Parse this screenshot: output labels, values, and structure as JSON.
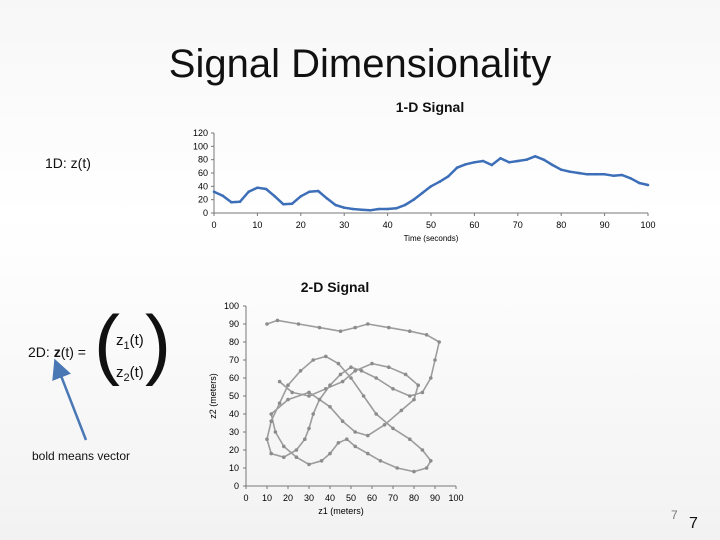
{
  "slide": {
    "title": "Signal Dimensionality",
    "label_1d": "1D: z(t)",
    "label_2d": "2D: ",
    "label_2d_bold": "z",
    "label_2d_rest": "(t) =",
    "vector_row1_main": "z",
    "vector_row1_sub": "1",
    "vector_row1_end": "(t)",
    "vector_row2_main": "z",
    "vector_row2_sub": "2",
    "vector_row2_end": "(t)",
    "bold_note": "bold means vector",
    "page_number_small": "7",
    "page_number": "7",
    "colors": {
      "arrow": "#4a78b5",
      "signal_1d": "#3d6fb8",
      "trace_2d": "#8c8c8c"
    }
  },
  "chart_data": [
    {
      "type": "line",
      "title": "1-D Signal",
      "xlabel": "Time (seconds)",
      "ylabel": "",
      "xlim": [
        0,
        100
      ],
      "ylim": [
        0,
        120
      ],
      "x_ticks": [
        "0",
        "10",
        "20",
        "30",
        "40",
        "50",
        "60",
        "70",
        "80",
        "90",
        "100"
      ],
      "y_ticks": [
        "0",
        "20",
        "40",
        "60",
        "80",
        "100",
        "120"
      ],
      "series": [
        {
          "x": [
            0,
            2,
            4,
            6,
            8,
            10,
            12,
            14,
            16,
            18,
            20,
            22,
            24,
            26,
            28,
            30,
            32,
            34,
            36,
            38,
            40,
            42,
            44,
            46,
            48,
            50,
            52,
            54,
            56,
            58,
            60,
            62,
            64,
            66,
            68,
            70,
            72,
            74,
            76,
            78,
            80,
            82,
            84,
            86,
            88,
            90,
            92,
            94,
            96,
            98,
            100
          ],
          "y": [
            32,
            26,
            16,
            17,
            32,
            38,
            36,
            25,
            13,
            14,
            25,
            32,
            33,
            22,
            12,
            8,
            6,
            5,
            4,
            6,
            6,
            7,
            12,
            20,
            30,
            40,
            47,
            55,
            68,
            73,
            76,
            78,
            72,
            82,
            76,
            78,
            80,
            85,
            80,
            72,
            65,
            62,
            60,
            58,
            58,
            58,
            56,
            57,
            52,
            45,
            42
          ]
        }
      ]
    },
    {
      "type": "scatter",
      "title": "2-D Signal",
      "xlabel": "z1 (meters)",
      "ylabel": "z2 (meters)",
      "xlim": [
        0,
        100
      ],
      "ylim": [
        0,
        100
      ],
      "x_ticks": [
        "0",
        "10",
        "20",
        "30",
        "40",
        "50",
        "60",
        "70",
        "80",
        "90",
        "100"
      ],
      "y_ticks": [
        "0",
        "10",
        "20",
        "30",
        "40",
        "50",
        "60",
        "70",
        "80",
        "90",
        "100"
      ],
      "series": [
        {
          "x": [
            10,
            15,
            25,
            35,
            45,
            52,
            58,
            68,
            78,
            86,
            92,
            90,
            88,
            84,
            78,
            70,
            62,
            55,
            50,
            45,
            40,
            35,
            32,
            30,
            28,
            24,
            18,
            12,
            10,
            12,
            16,
            20,
            26,
            32,
            38,
            44,
            50,
            56,
            62,
            70,
            78,
            84,
            88,
            86,
            80,
            72,
            64,
            58,
            52,
            48,
            44,
            40,
            36,
            30,
            24,
            18,
            14,
            12,
            20,
            30,
            40,
            46,
            52,
            58,
            66,
            74,
            80,
            82,
            76,
            68,
            60,
            52,
            46,
            38,
            30,
            22,
            16
          ],
          "y": [
            90,
            92,
            90,
            88,
            86,
            88,
            90,
            88,
            86,
            84,
            80,
            70,
            60,
            52,
            50,
            54,
            60,
            64,
            66,
            62,
            56,
            48,
            40,
            32,
            26,
            20,
            16,
            18,
            26,
            36,
            46,
            56,
            64,
            70,
            72,
            68,
            60,
            50,
            40,
            32,
            26,
            20,
            14,
            10,
            8,
            10,
            14,
            18,
            22,
            26,
            24,
            18,
            14,
            12,
            16,
            22,
            30,
            40,
            48,
            52,
            44,
            36,
            30,
            28,
            34,
            42,
            48,
            56,
            62,
            66,
            68,
            64,
            58,
            54,
            50,
            52,
            58
          ]
        }
      ]
    }
  ]
}
